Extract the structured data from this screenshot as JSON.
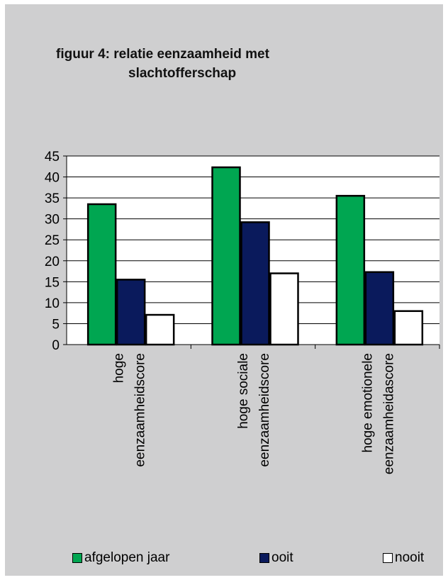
{
  "chart_data": {
    "type": "bar",
    "title": "figuur 4: relatie eenzaamheid met slachtofferschap",
    "title_lines": [
      "figuur 4: relatie eenzaamheid met",
      "slachtofferschap"
    ],
    "categories": [
      [
        "hoge",
        "eenzaamheidscore"
      ],
      [
        "hoge sociale",
        "eenzaamheidscore"
      ],
      [
        "hoge emotionele",
        "eenzaamheidascore"
      ]
    ],
    "series": [
      {
        "name": "afgelopen jaar",
        "color": "#00a651",
        "values": [
          33.5,
          42.3,
          35.5
        ]
      },
      {
        "name": "ooit",
        "color": "#0a1a5c",
        "values": [
          15.5,
          29.2,
          17.3
        ]
      },
      {
        "name": "nooit",
        "color": "#ffffff",
        "values": [
          7.1,
          17.0,
          8.0
        ]
      }
    ],
    "ylim": [
      0,
      45
    ],
    "yticks": [
      0,
      5,
      10,
      15,
      20,
      25,
      30,
      35,
      40,
      45
    ],
    "grid": true,
    "legend_position": "bottom",
    "plot_background": "#ffffff",
    "page_background": "#cfcfd0"
  }
}
